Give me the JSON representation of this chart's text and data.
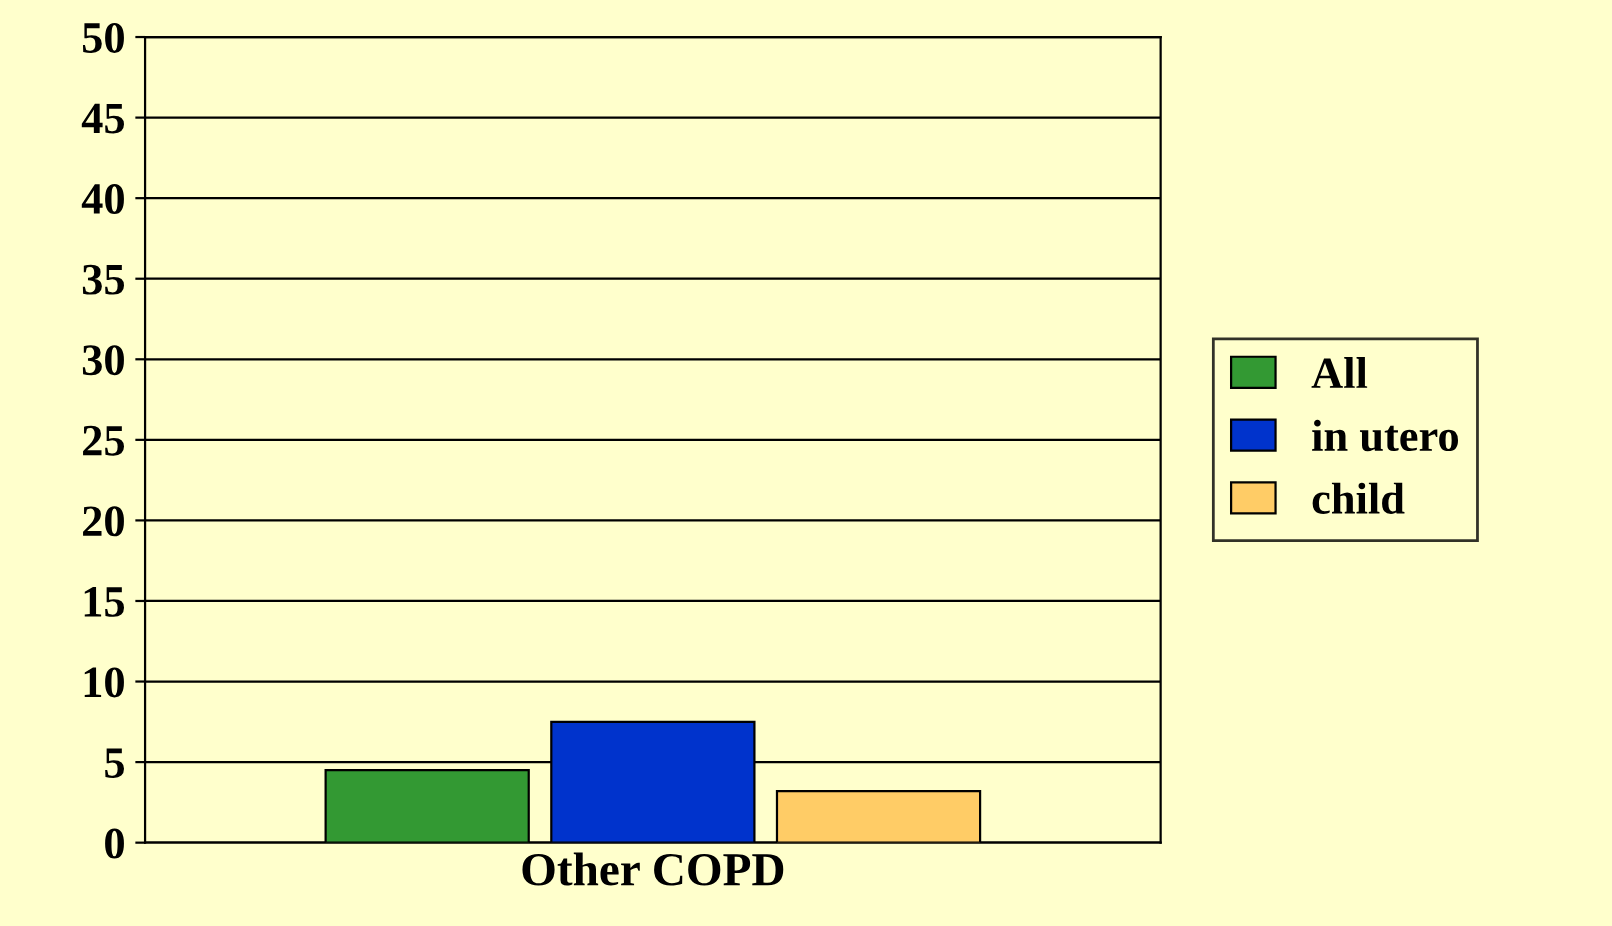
{
  "chart_data": {
    "type": "bar",
    "categories": [
      "Other COPD"
    ],
    "series": [
      {
        "name": "All",
        "color": "#339933",
        "values": [
          4.5
        ]
      },
      {
        "name": "in utero",
        "color": "#0033cc",
        "values": [
          7.5
        ]
      },
      {
        "name": "child",
        "color": "#ffcc66",
        "values": [
          3.2
        ]
      }
    ],
    "ylim": [
      0,
      50
    ],
    "yticks": [
      0,
      5,
      10,
      15,
      20,
      25,
      30,
      35,
      40,
      45,
      50
    ],
    "grid": "y",
    "legend": "right"
  }
}
